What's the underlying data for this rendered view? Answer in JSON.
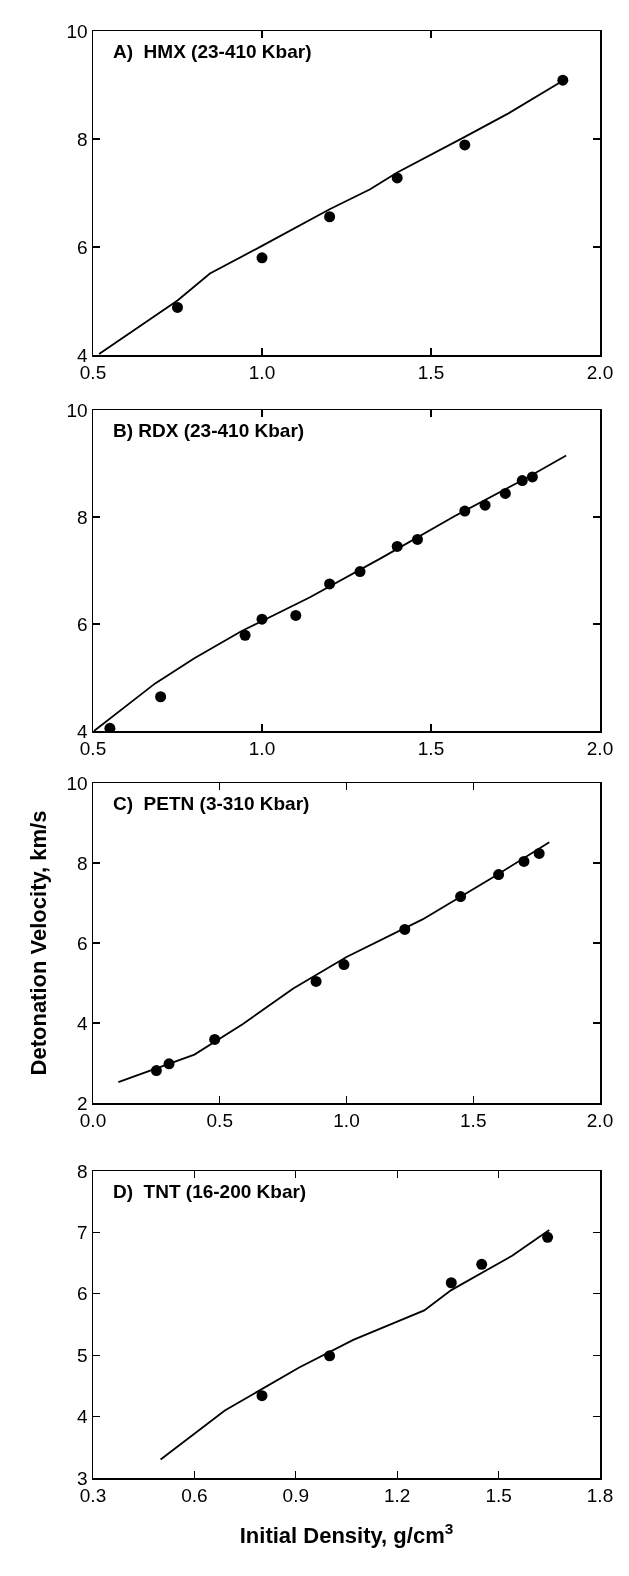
{
  "chart_data": [
    {
      "type": "scatter",
      "title": "A)  HMX (23-410 Kbar)",
      "xlim": [
        0.5,
        2.0
      ],
      "xticks": [
        0.5,
        {
          "value": 1,
          "label": "1.0"
        },
        1.5,
        {
          "value": 2,
          "label": "2.0"
        }
      ],
      "ylim": [
        4,
        10
      ],
      "yticks": [
        4,
        6,
        8,
        10
      ],
      "series": [
        {
          "type": "scatter",
          "marker": "circle",
          "color": "#000000",
          "x": [
            0.75,
            1.0,
            1.2,
            1.4,
            1.6,
            1.89
          ],
          "values": [
            4.88,
            5.8,
            6.56,
            7.28,
            7.89,
            9.09
          ]
        },
        {
          "type": "line",
          "marker": "none",
          "line_style": "solid",
          "color": "#000000",
          "x": [
            0.518,
            0.75,
            0.846,
            1.0,
            1.2,
            1.32,
            1.4,
            1.6,
            1.725,
            1.89
          ],
          "values": [
            4.02,
            5.01,
            5.51,
            6.02,
            6.7,
            7.07,
            7.38,
            8.04,
            8.46,
            9.08
          ]
        }
      ]
    },
    {
      "type": "scatter",
      "title": "B) RDX (23-410 Kbar)",
      "xlim": [
        0.5,
        2.0
      ],
      "xticks": [
        0.5,
        {
          "value": 1,
          "label": "1.0"
        },
        1.5,
        {
          "value": 2,
          "label": "2.0"
        }
      ],
      "ylim": [
        4,
        10
      ],
      "yticks": [
        4,
        6,
        8,
        10
      ],
      "series": [
        {
          "type": "scatter",
          "marker": "circle",
          "color": "#000000",
          "x": [
            0.55,
            0.7,
            0.95,
            1.0,
            1.1,
            1.2,
            1.29,
            1.4,
            1.46,
            1.6,
            1.66,
            1.72,
            1.77,
            1.8
          ],
          "values": [
            4.05,
            4.64,
            5.79,
            6.09,
            6.16,
            6.75,
            6.98,
            7.45,
            7.58,
            8.11,
            8.22,
            8.44,
            8.68,
            8.75
          ]
        },
        {
          "type": "line",
          "marker": "none",
          "line_style": "solid",
          "color": "#000000",
          "x": [
            0.503,
            0.684,
            0.8,
            0.94,
            1.142,
            1.355,
            1.568,
            1.78,
            1.9
          ],
          "values": [
            4.0,
            4.89,
            5.36,
            5.87,
            6.5,
            7.24,
            8.01,
            8.72,
            9.15
          ]
        }
      ]
    },
    {
      "type": "scatter",
      "title": "C)  PETN (3-310 Kbar)",
      "ylabel": "Detonation Velocity, km/s",
      "xlim": [
        0,
        2.0
      ],
      "xticks": [
        {
          "value": 0,
          "label": "0.0"
        },
        0.5,
        {
          "value": 1,
          "label": "1.0"
        },
        1.5,
        {
          "value": 2,
          "label": "2.0"
        }
      ],
      "ylim": [
        2,
        10
      ],
      "yticks": [
        2,
        4,
        6,
        8,
        10
      ],
      "series": [
        {
          "type": "scatter",
          "marker": "circle",
          "color": "#000000",
          "x": [
            0.25,
            0.3,
            0.48,
            0.88,
            0.99,
            1.23,
            1.45,
            1.6,
            1.7,
            1.76
          ],
          "values": [
            2.81,
            2.98,
            3.59,
            5.04,
            5.46,
            6.34,
            7.16,
            7.71,
            8.04,
            8.24
          ]
        },
        {
          "type": "line",
          "marker": "none",
          "line_style": "solid",
          "color": "#000000",
          "x": [
            0.1,
            0.4,
            0.59,
            0.79,
            1.0,
            1.3,
            1.58,
            1.8
          ],
          "values": [
            2.52,
            3.21,
            3.97,
            4.86,
            5.65,
            6.59,
            7.65,
            8.52
          ]
        }
      ]
    },
    {
      "type": "scatter",
      "title": "D)  TNT (16-200 Kbar)",
      "xlabel": "Initial Density, g/cm$^{3}$",
      "xlim": [
        0.3,
        1.8
      ],
      "xticks": [
        0.3,
        0.6,
        0.9,
        1.2,
        1.5,
        1.8
      ],
      "ylim": [
        3,
        8
      ],
      "yticks": [
        3,
        4,
        5,
        6,
        7,
        8
      ],
      "series": [
        {
          "type": "scatter",
          "marker": "circle",
          "color": "#000000",
          "x": [
            0.8,
            1.0,
            1.36,
            1.45,
            1.645
          ],
          "values": [
            4.34,
            4.99,
            6.18,
            6.48,
            6.92
          ]
        },
        {
          "type": "line",
          "marker": "none",
          "line_style": "solid",
          "color": "#000000",
          "x": [
            0.5,
            0.69,
            0.91,
            1.07,
            1.28,
            1.36,
            1.54,
            1.65
          ],
          "values": [
            3.3,
            4.1,
            4.8,
            5.25,
            5.73,
            6.06,
            6.62,
            7.04
          ]
        }
      ]
    }
  ]
}
